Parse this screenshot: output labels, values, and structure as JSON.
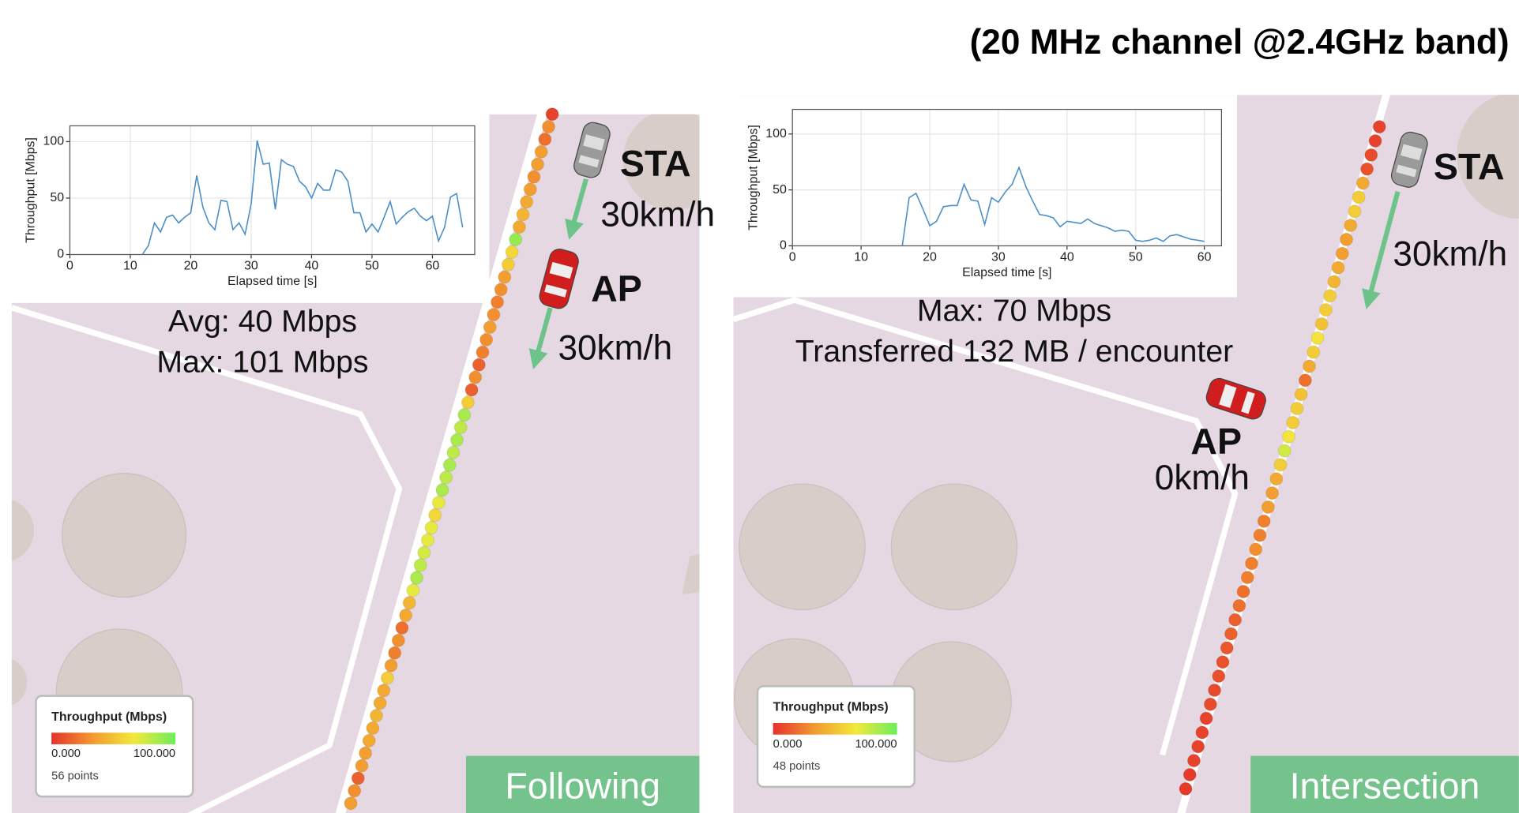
{
  "title": "(20 MHz channel @2.4GHz band)",
  "colormap": [
    "#e5322b",
    "#f39a2f",
    "#f3e83c",
    "#6cee5a"
  ],
  "chart_data": [
    {
      "type": "line",
      "x_label": "Elapsed time [s]",
      "y_label": "Throughput [Mbps]",
      "x": [
        12,
        13,
        14,
        15,
        16,
        17,
        18,
        19,
        20,
        21,
        22,
        23,
        24,
        25,
        26,
        27,
        28,
        29,
        30,
        31,
        32,
        33,
        34,
        35,
        36,
        37,
        38,
        39,
        40,
        41,
        42,
        43,
        44,
        45,
        46,
        47,
        48,
        49,
        50,
        51,
        52,
        53,
        54,
        55,
        56,
        57,
        58,
        59,
        60,
        61,
        62,
        63,
        64,
        65
      ],
      "series": [
        {
          "color": "#4b8fc8",
          "values": [
            0,
            8,
            28,
            20,
            33,
            35,
            28,
            33,
            37,
            70,
            42,
            28,
            22,
            48,
            47,
            22,
            28,
            18,
            45,
            101,
            80,
            81,
            40,
            84,
            80,
            78,
            65,
            60,
            50,
            63,
            57,
            57,
            75,
            73,
            65,
            37,
            37,
            20,
            27,
            20,
            33,
            47,
            27,
            33,
            38,
            41,
            34,
            30,
            34,
            12,
            24,
            51,
            54,
            24
          ]
        }
      ],
      "xlim": [
        0,
        67
      ],
      "ylim": [
        0,
        114
      ],
      "xticks": [
        0,
        10,
        20,
        30,
        40,
        50,
        60
      ],
      "yticks": [
        0,
        50,
        100
      ],
      "grid": true
    },
    {
      "type": "line",
      "x_label": "Elapsed time [s]",
      "y_label": "Throughput [Mbps]",
      "x": [
        16,
        17,
        18,
        19,
        20,
        21,
        22,
        23,
        24,
        25,
        26,
        27,
        28,
        29,
        30,
        31,
        32,
        33,
        34,
        35,
        36,
        37,
        38,
        39,
        40,
        41,
        42,
        43,
        44,
        45,
        46,
        47,
        48,
        49,
        50,
        51,
        52,
        53,
        54,
        55,
        56,
        57,
        58,
        59,
        60
      ],
      "series": [
        {
          "color": "#4b8fc8",
          "values": [
            0,
            43,
            47,
            33,
            18,
            22,
            35,
            36,
            36,
            55,
            41,
            40,
            19,
            43,
            39,
            48,
            55,
            70,
            53,
            40,
            28,
            27,
            25,
            17,
            22,
            21,
            20,
            24,
            20,
            18,
            16,
            13,
            14,
            13,
            5,
            4,
            5,
            7,
            4,
            9,
            10,
            8,
            6,
            5,
            4
          ]
        }
      ],
      "xlim": [
        0,
        62.5
      ],
      "ylim": [
        0,
        122
      ],
      "xticks": [
        0,
        10,
        20,
        30,
        40,
        50,
        60
      ],
      "yticks": [
        0,
        50,
        100
      ],
      "grid": true
    }
  ],
  "panels": [
    {
      "stats": [
        "Avg: 40 Mbps",
        "Max: 101 Mbps"
      ],
      "sta": "STA",
      "sta_speed": "30km/h",
      "ap": "AP",
      "ap_speed": "30km/h",
      "label": "Following",
      "legend": {
        "title": "Throughput (Mbps)",
        "min": {
          "value": 0,
          "label": "0.000"
        },
        "max": {
          "value": 100,
          "label": "100.000"
        },
        "count": "56 points"
      },
      "points": [
        5,
        30,
        20,
        35,
        35,
        30,
        35,
        40,
        45,
        40,
        90,
        60,
        55,
        35,
        30,
        25,
        30,
        35,
        30,
        25,
        15,
        30,
        15,
        55,
        85,
        80,
        85,
        80,
        85,
        80,
        85,
        70,
        60,
        70,
        70,
        75,
        80,
        85,
        70,
        45,
        40,
        20,
        30,
        25,
        35,
        55,
        40,
        40,
        45,
        40,
        40,
        35,
        35,
        15,
        30,
        35
      ]
    },
    {
      "stats": [
        "Max: 70 Mbps",
        "Transferred 132 MB / encounter"
      ],
      "sta": "STA",
      "sta_speed": "30km/h",
      "ap": "AP",
      "ap_speed": "0km/h",
      "label": "Intersection",
      "legend": {
        "title": "Throughput (Mbps)",
        "min": {
          "value": 0,
          "label": "0.000"
        },
        "max": {
          "value": 100,
          "label": "100.000"
        },
        "count": "48 points"
      },
      "points": [
        5,
        5,
        8,
        10,
        40,
        55,
        55,
        40,
        35,
        35,
        40,
        45,
        55,
        55,
        50,
        65,
        55,
        40,
        20,
        50,
        55,
        55,
        65,
        75,
        55,
        40,
        35,
        35,
        25,
        25,
        30,
        25,
        25,
        20,
        20,
        15,
        15,
        12,
        10,
        10,
        8,
        8,
        5,
        5,
        5,
        5,
        3,
        3
      ]
    }
  ]
}
